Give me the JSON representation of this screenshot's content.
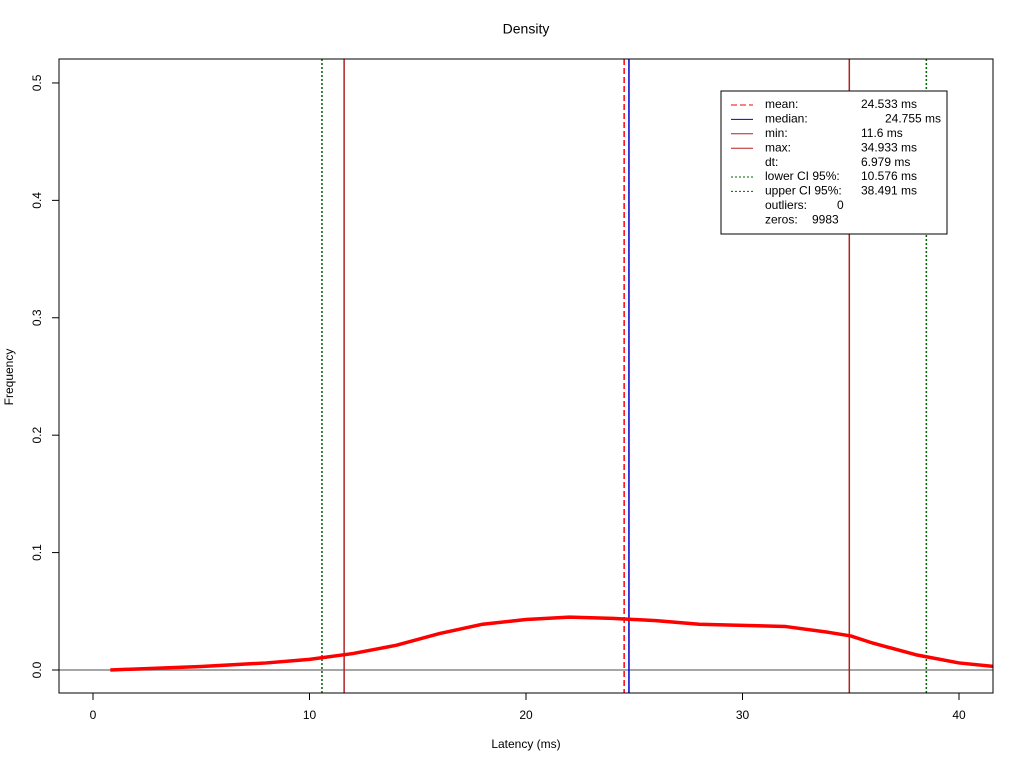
{
  "chart_data": {
    "type": "line",
    "title": "Density",
    "x_label": "Latency (ms)",
    "y_label": "Frequency",
    "xlim": [
      -1.57,
      41.57
    ],
    "ylim": [
      -0.0196,
      0.5204
    ],
    "xticks": [
      0,
      10,
      20,
      30,
      40
    ],
    "yticks": [
      {
        "value": 0,
        "label": "0.0"
      },
      0.1,
      0.2,
      0.3,
      0.4,
      0.5
    ],
    "series": [
      {
        "color": "#ff0000",
        "x": [
          0.8,
          5,
          8,
          10,
          12,
          14,
          16,
          18,
          20,
          22,
          24,
          26,
          28,
          30,
          32,
          34,
          35,
          36,
          38,
          40,
          41.6
        ],
        "values": [
          0,
          0.003,
          0.006,
          0.009,
          0.014,
          0.021,
          0.031,
          0.039,
          0.043,
          0.045,
          0.044,
          0.042,
          0.039,
          0.038,
          0.037,
          0.032,
          0.029,
          0.023,
          0.013,
          0.006,
          0.003
        ]
      }
    ],
    "reference_lines": {
      "names": [
        "mean:",
        "median:",
        "min:",
        "max:",
        "lower CI 95%:",
        "upper CI 95%:"
      ],
      "values": [
        24.533,
        24.755,
        11.6,
        34.933,
        10.576,
        38.491
      ],
      "value_labels": [
        "24.533 ms",
        "24.755 ms",
        "11.6 ms",
        "34.933 ms",
        "10.576 ms",
        "38.491 ms"
      ],
      "colors": [
        "#ff0000",
        "#0000cc",
        "#b22222",
        "#b22222",
        "#006400",
        "#006400"
      ],
      "styles": [
        "dashed",
        "solid",
        "solid",
        "solid",
        "dotted",
        "dotted"
      ]
    },
    "legend_extra": [
      {
        "label": "dt:",
        "text": "6.979 ms"
      },
      {
        "label": "outliers:",
        "text": "0"
      },
      {
        "label": "zeros:",
        "text": "9983"
      }
    ]
  }
}
